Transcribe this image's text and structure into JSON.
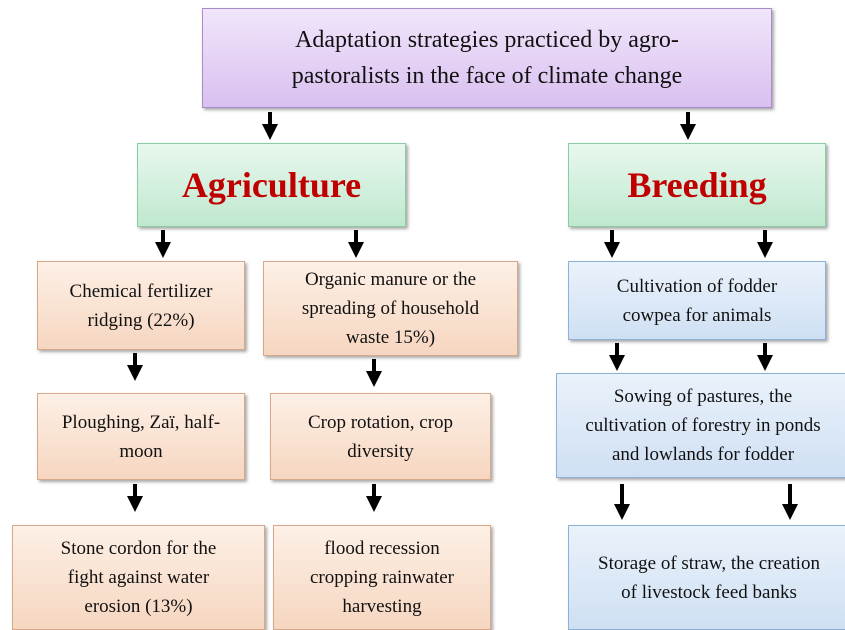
{
  "title": {
    "lines": [
      "Adaptation strategies practiced by agro-",
      "pastoralists in the face of climate change"
    ]
  },
  "branches": [
    {
      "label": "Agriculture",
      "columns": [
        [
          {
            "lines": [
              "Chemical fertilizer",
              "ridging (22%)"
            ]
          },
          {
            "lines": [
              "Ploughing, Zaï, half-",
              "moon"
            ]
          },
          {
            "lines": [
              "Stone cordon for the",
              "fight against water",
              "erosion (13%)"
            ]
          }
        ],
        [
          {
            "lines": [
              "Organic manure or the",
              "spreading of household",
              "waste 15%)"
            ]
          },
          {
            "lines": [
              "Crop rotation, crop",
              "diversity"
            ]
          },
          {
            "lines": [
              "flood recession",
              "cropping rainwater",
              "harvesting"
            ]
          }
        ]
      ]
    },
    {
      "label": "Breeding",
      "columns": [
        [
          {
            "lines": [
              "Cultivation of fodder",
              "cowpea for animals"
            ]
          },
          {
            "lines": [
              "Sowing of pastures, the",
              "cultivation of forestry in ponds",
              "and lowlands for fodder"
            ]
          },
          {
            "lines": [
              "Storage of straw, the creation",
              "of livestock feed banks"
            ]
          }
        ]
      ]
    }
  ]
}
